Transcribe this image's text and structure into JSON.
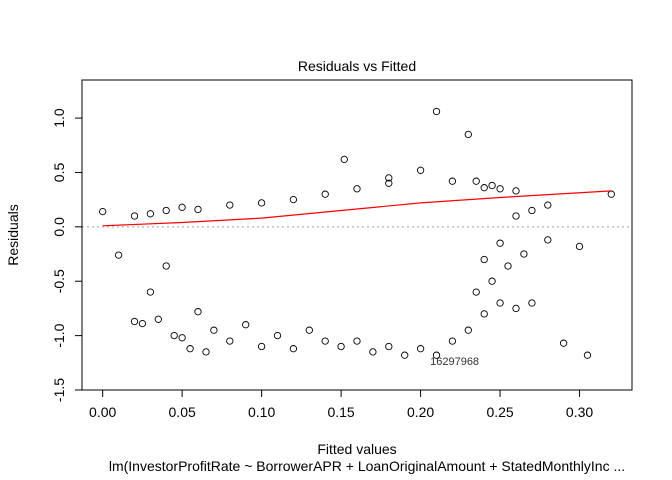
{
  "chart_data": {
    "type": "scatter",
    "title": "Residuals vs Fitted",
    "xlabel": "Fitted values",
    "ylabel": "Residuals",
    "subtitle": "lm(InvestorProfitRate ~ BorrowerAPR + LoanOriginalAmount + StatedMonthlyInc ...",
    "xlim": [
      -0.013,
      0.333
    ],
    "ylim": [
      -1.5,
      1.35
    ],
    "x_ticks": [
      0.0,
      0.05,
      0.1,
      0.15,
      0.2,
      0.25,
      0.3
    ],
    "x_tick_labels": [
      "0.00",
      "0.05",
      "0.10",
      "0.15",
      "0.20",
      "0.25",
      "0.30"
    ],
    "y_ticks": [
      -1.5,
      -1.0,
      -0.5,
      0.0,
      0.5,
      1.0
    ],
    "y_tick_labels": [
      "-1.5",
      "-1.0",
      "-0.5",
      "0.0",
      "0.5",
      "1.0"
    ],
    "reference_line": {
      "y": 0,
      "style": "dotted",
      "color": "#a0a0a0"
    },
    "smoother": {
      "color": "#ff0000",
      "x": [
        0.0,
        0.05,
        0.1,
        0.15,
        0.2,
        0.25,
        0.32
      ],
      "y": [
        0.01,
        0.04,
        0.08,
        0.15,
        0.22,
        0.27,
        0.33
      ]
    },
    "point_style": {
      "shape": "open-circle",
      "color": "#000000"
    },
    "points": [
      [
        0.0,
        0.14
      ],
      [
        0.01,
        -0.26
      ],
      [
        0.02,
        -0.87
      ],
      [
        0.025,
        -0.89
      ],
      [
        0.03,
        -0.6
      ],
      [
        0.035,
        -0.85
      ],
      [
        0.04,
        -0.36
      ],
      [
        0.045,
        -1.0
      ],
      [
        0.05,
        -1.02
      ],
      [
        0.055,
        -1.12
      ],
      [
        0.06,
        -0.78
      ],
      [
        0.065,
        -1.15
      ],
      [
        0.07,
        -0.95
      ],
      [
        0.08,
        -1.05
      ],
      [
        0.09,
        -0.9
      ],
      [
        0.1,
        -1.1
      ],
      [
        0.11,
        -1.0
      ],
      [
        0.12,
        -1.12
      ],
      [
        0.13,
        -0.95
      ],
      [
        0.14,
        -1.05
      ],
      [
        0.15,
        -1.1
      ],
      [
        0.16,
        -1.05
      ],
      [
        0.17,
        -1.15
      ],
      [
        0.18,
        -1.1
      ],
      [
        0.19,
        -1.18
      ],
      [
        0.2,
        -1.12
      ],
      [
        0.21,
        -1.18
      ],
      [
        0.22,
        -1.05
      ],
      [
        0.23,
        -0.95
      ],
      [
        0.24,
        -0.8
      ],
      [
        0.25,
        -0.7
      ],
      [
        0.26,
        -0.75
      ],
      [
        0.27,
        -0.7
      ],
      [
        0.29,
        -1.07
      ],
      [
        0.305,
        -1.18
      ],
      [
        0.3,
        -0.18
      ],
      [
        0.28,
        -0.12
      ],
      [
        0.265,
        -0.25
      ],
      [
        0.255,
        -0.36
      ],
      [
        0.245,
        -0.5
      ],
      [
        0.235,
        -0.6
      ],
      [
        0.24,
        -0.3
      ],
      [
        0.25,
        -0.15
      ],
      [
        0.26,
        0.1
      ],
      [
        0.27,
        0.15
      ],
      [
        0.28,
        0.2
      ],
      [
        0.25,
        0.35
      ],
      [
        0.245,
        0.38
      ],
      [
        0.32,
        0.3
      ],
      [
        0.235,
        0.42
      ],
      [
        0.21,
        1.06
      ],
      [
        0.23,
        0.85
      ],
      [
        0.152,
        0.62
      ],
      [
        0.2,
        0.52
      ],
      [
        0.18,
        0.45
      ],
      [
        0.02,
        0.1
      ],
      [
        0.03,
        0.12
      ],
      [
        0.04,
        0.15
      ],
      [
        0.05,
        0.18
      ],
      [
        0.06,
        0.16
      ],
      [
        0.08,
        0.2
      ],
      [
        0.1,
        0.22
      ],
      [
        0.12,
        0.25
      ],
      [
        0.14,
        0.3
      ],
      [
        0.16,
        0.35
      ],
      [
        0.18,
        0.4
      ],
      [
        0.22,
        0.42
      ],
      [
        0.24,
        0.36
      ],
      [
        0.26,
        0.33
      ]
    ],
    "point_labels": [
      {
        "x": 0.206,
        "y": -1.27,
        "text": "16297968"
      }
    ]
  }
}
